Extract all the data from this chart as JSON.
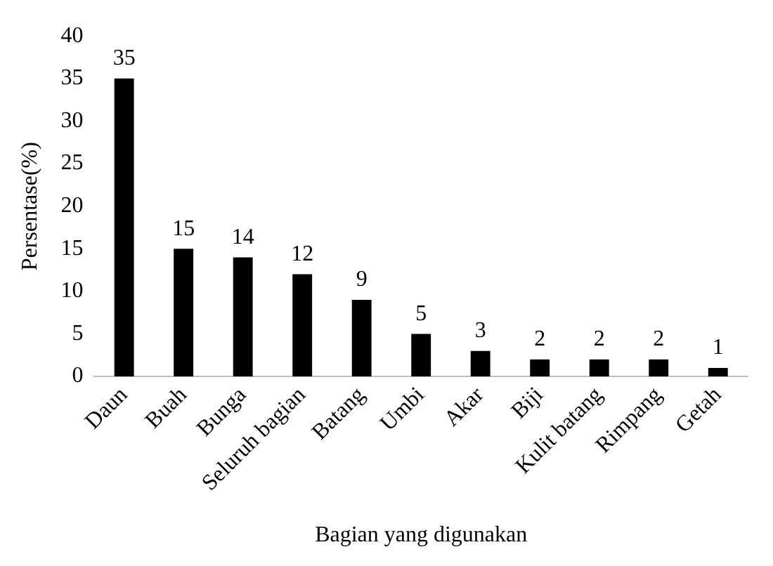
{
  "chart_data": {
    "type": "bar",
    "xlabel": "Bagian yang digunakan",
    "ylabel": "Persentase(%)",
    "categories": [
      "Daun",
      "Buah",
      "Bunga",
      "Seluruh bagian",
      "Batang",
      "Umbi",
      "Akar",
      "Biji",
      "Kulit batang",
      "Rimpang",
      "Getah"
    ],
    "values": [
      35,
      15,
      14,
      12,
      9,
      5,
      3,
      2,
      2,
      2,
      1
    ],
    "color": "#000000",
    "ylim": [
      0,
      40
    ],
    "yticks": [
      0,
      5,
      10,
      15,
      20,
      25,
      30,
      35,
      40
    ],
    "grid": false,
    "legend": false,
    "data_labels": true
  }
}
